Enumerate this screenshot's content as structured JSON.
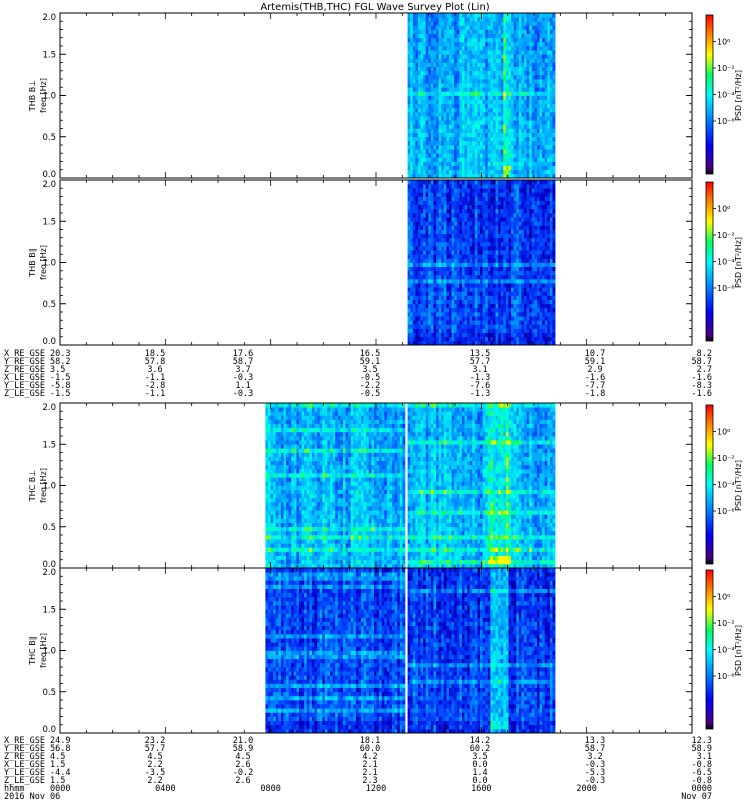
{
  "chart_data": {
    "type": "heatmap",
    "title": "Artemis(THB,THC) FGL Wave Survey Plot (Lin)",
    "x_axis": {
      "label": "hhmm",
      "date_label": "2016 Nov 06",
      "end_label": "Nov 07",
      "tick_times": [
        "0000",
        "0400",
        "0800",
        "1200",
        "1600",
        "2000",
        "0000"
      ],
      "range_hours": [
        0,
        24
      ]
    },
    "colorbar": {
      "label": "PSD [nT²/Hz]",
      "scale": "log",
      "range": [
        1e-10,
        100.0
      ],
      "colormap": "rainbow",
      "tick_labels": [
        "10⁰",
        "10⁻²",
        "10⁻⁴",
        "10⁻⁶"
      ]
    },
    "panels": [
      {
        "id": "thb-bperp",
        "probe": "THB",
        "ylabel_probe": "THB B⊥",
        "ylabel_unit": "freq [Hz]",
        "y_ticks": [
          "2.0",
          "1.5",
          "1.0",
          "0.5",
          "0.0"
        ],
        "ylim": [
          0,
          2
        ],
        "data_intervals_hours": [
          [
            13.2,
            18.8
          ]
        ],
        "level": "medium",
        "enhanced_band_hz": 0.1,
        "enhanced_start_hours": 16.8,
        "enhanced_end_hours": 17.1
      },
      {
        "id": "thb-bpar",
        "probe": "THB",
        "ylabel_probe": "THB B∥",
        "ylabel_unit": "freq [Hz]",
        "y_ticks": [
          "2.0",
          "1.5",
          "1.0",
          "0.5",
          "0.0"
        ],
        "ylim": [
          0,
          2
        ],
        "data_intervals_hours": [
          [
            13.2,
            18.8
          ]
        ],
        "level": "low"
      },
      {
        "id": "thc-bperp",
        "probe": "THC",
        "ylabel_probe": "THC B⊥",
        "ylabel_unit": "freq [Hz]",
        "y_ticks": [
          "2.0",
          "1.5",
          "1.0",
          "0.5",
          "0.0"
        ],
        "ylim": [
          0,
          2
        ],
        "data_intervals_hours": [
          [
            7.8,
            13.1
          ],
          [
            13.2,
            18.8
          ]
        ],
        "level": "medium",
        "enhanced_band_hz": 0.1,
        "enhanced_start_hours": 16.2,
        "enhanced_end_hours": 17.1
      },
      {
        "id": "thc-bpar",
        "probe": "THC",
        "ylabel_probe": "THC B∥",
        "ylabel_unit": "freq [Hz]",
        "y_ticks": [
          "2.0",
          "1.5",
          "1.0",
          "0.5",
          "0.0"
        ],
        "ylim": [
          0,
          2
        ],
        "data_intervals_hours": [
          [
            7.8,
            13.1
          ],
          [
            13.2,
            18.8
          ]
        ],
        "level": "low",
        "enhanced_band_hz": 0.1,
        "enhanced_start_hours": 16.3,
        "enhanced_end_hours": 17.0
      }
    ],
    "ephemeris_thb": {
      "labels": [
        "X_RE_GSE",
        "Y_RE_GSE",
        "Z_RE_GSE",
        "X_LE_GSE",
        "Y_LE_GSE",
        "Z_LE_GSE"
      ],
      "rows": [
        [
          "20.3",
          "18.5",
          "17.6",
          "16.5",
          "13.5",
          "10.7",
          "8.2"
        ],
        [
          "58.2",
          "57.8",
          "58.7",
          "59.1",
          "57.7",
          "59.1",
          "58.7"
        ],
        [
          "3.5",
          "3.6",
          "3.7",
          "3.5",
          "3.1",
          "2.9",
          "2.7"
        ],
        [
          "-1.5",
          "-1.1",
          "-0.3",
          "-0.5",
          "-1.3",
          "-1.6",
          "-1.6"
        ],
        [
          "-5.8",
          "-2.8",
          "1.1",
          "-2.2",
          "-7.6",
          "-7.7",
          "-8.3"
        ],
        [
          "-1.5",
          "-1.1",
          "-0.3",
          "-0.5",
          "-1.3",
          "-1.8",
          "-1.6"
        ]
      ]
    },
    "ephemeris_thc": {
      "labels": [
        "X_RE_GSE",
        "Y_RE_GSE",
        "Z_RE_GSE",
        "X_LE_GSE",
        "Y_LE_GSE",
        "Z_LE_GSE"
      ],
      "rows": [
        [
          "24.9",
          "23.2",
          "21.0",
          "18.1",
          "14.2",
          "13.3",
          "12.3"
        ],
        [
          "56.8",
          "57.7",
          "58.9",
          "60.0",
          "60.2",
          "58.7",
          "58.9"
        ],
        [
          "4.5",
          "4.5",
          "4.5",
          "4.2",
          "3.5",
          "3.2",
          "3.1"
        ],
        [
          "1.5",
          "2.2",
          "2.6",
          "2.1",
          "0.0",
          "-0.3",
          "-0.8"
        ],
        [
          "-4.4",
          "-3.5",
          "-0.2",
          "2.1",
          "1.4",
          "-5.3",
          "-6.5"
        ],
        [
          "1.5",
          "2.2",
          "2.6",
          "2.3",
          "0.0",
          "-0.3",
          "-0.8"
        ]
      ]
    }
  }
}
